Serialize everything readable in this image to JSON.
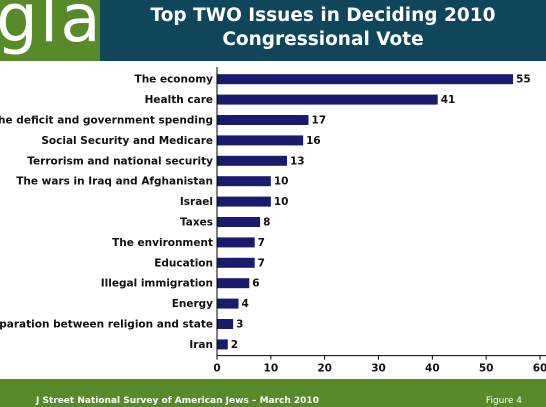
{
  "header": {
    "logo_text": "gla",
    "title_line1": "Top TWO Issues in Deciding 2010",
    "title_line2": "Congressional Vote"
  },
  "footer": {
    "source": "J Street National Survey of American Jews – March 2010",
    "figure": "Figure 4"
  },
  "colors": {
    "header_bg": "#0f4659",
    "accent_green": "#588a2a",
    "bar": "#1a1a6e"
  },
  "chart_data": {
    "type": "bar",
    "orientation": "horizontal",
    "title": "Top TWO Issues in Deciding 2010 Congressional Vote",
    "categories": [
      "The economy",
      "Health care",
      "The deficit and government spending",
      "Social Security and Medicare",
      "Terrorism and national security",
      "The wars in Iraq and Afghanistan",
      "Israel",
      "Taxes",
      "The environment",
      "Education",
      "Illegal immigration",
      "Energy",
      "Separation between religion and state",
      "Iran"
    ],
    "values": [
      55,
      41,
      17,
      16,
      13,
      10,
      10,
      8,
      7,
      7,
      6,
      4,
      3,
      2
    ],
    "xlim": [
      0,
      60
    ],
    "xticks": [
      0,
      10,
      20,
      30,
      40,
      50,
      60
    ],
    "grid": false,
    "data_labels": true
  }
}
